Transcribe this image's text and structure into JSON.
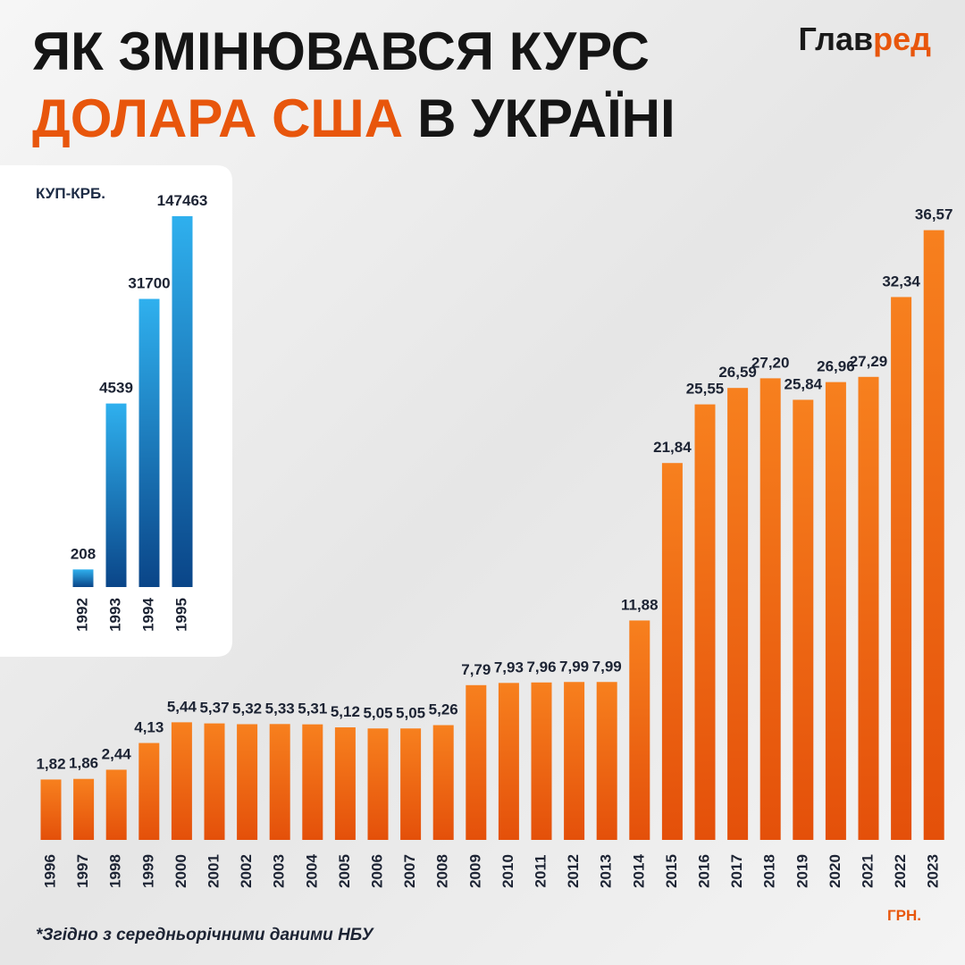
{
  "header": {
    "title_line1": "ЯК ЗМІНЮВАВСЯ КУРС",
    "title_highlight": "ДОЛАРА США",
    "title_rest": "В УКРАЇНІ",
    "logo_main": "Глав",
    "logo_accent": "ред"
  },
  "footnote": "*Згідно з середньорічними даними НБУ",
  "chart_data": [
    {
      "type": "bar",
      "unit_label": "ГРН.",
      "categories": [
        "1996",
        "1997",
        "1998",
        "1999",
        "2000",
        "2001",
        "2002",
        "2003",
        "2004",
        "2005",
        "2006",
        "2007",
        "2008",
        "2009",
        "2010",
        "2011",
        "2012",
        "2013",
        "2014",
        "2015",
        "2016",
        "2017",
        "2018",
        "2019",
        "2020",
        "2021",
        "2022",
        "2023"
      ],
      "values": [
        1.82,
        1.86,
        2.44,
        4.13,
        5.44,
        5.37,
        5.32,
        5.33,
        5.31,
        5.12,
        5.05,
        5.05,
        5.26,
        7.79,
        7.93,
        7.96,
        7.99,
        7.99,
        11.88,
        21.84,
        25.55,
        26.59,
        27.2,
        25.84,
        26.96,
        27.29,
        32.34,
        36.57
      ],
      "value_labels": [
        "1,82",
        "1,86",
        "2,44",
        "4,13",
        "5,44",
        "5,37",
        "5,32",
        "5,33",
        "5,31",
        "5,12",
        "5,05",
        "5,05",
        "5,26",
        "7,79",
        "7,93",
        "7,96",
        "7,99",
        "7,99",
        "11,88",
        "21,84",
        "25,55",
        "26,59",
        "27,20",
        "25,84",
        "26,96",
        "27,29",
        "32,34",
        "36,57"
      ],
      "color": "#f7801e",
      "color2": "#e4500a",
      "ylim": [
        -2,
        37
      ]
    },
    {
      "type": "bar",
      "unit_label": "КУП-КРБ.",
      "categories": [
        "1992",
        "1993",
        "1994",
        "1995"
      ],
      "values": [
        208,
        4539,
        31700,
        147463
      ],
      "color": "#2fb0ee",
      "color2": "#0a4588",
      "ylim": [
        150,
        160000
      ],
      "log": true
    }
  ]
}
